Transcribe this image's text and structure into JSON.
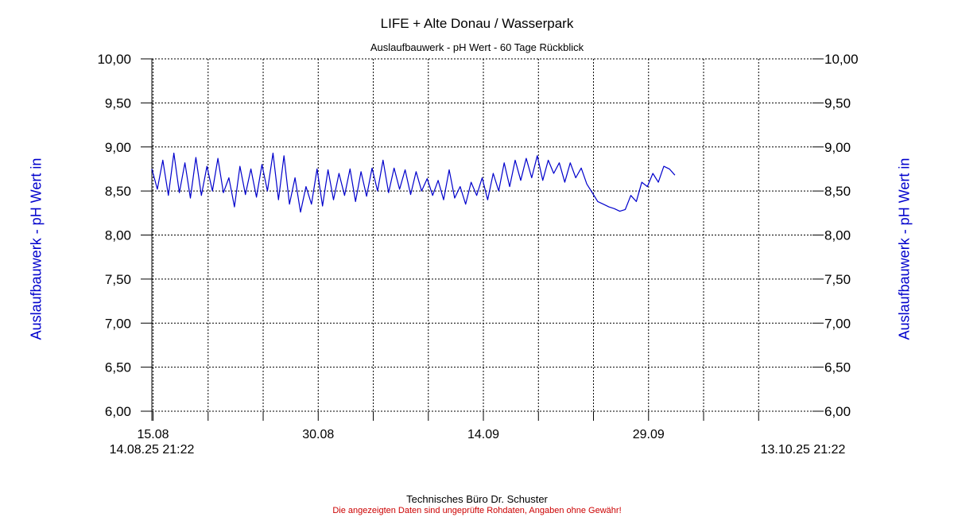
{
  "chart_data": {
    "type": "line",
    "title": "LIFE + Alte Donau / Wasserpark",
    "subtitle": "Auslaufbauwerk - pH Wert - 60 Tage Rückblick",
    "ylabel": "Auslaufbauwerk - pH Wert in",
    "ylim": [
      6.0,
      10.0
    ],
    "y_ticks": [
      "6,00",
      "6,50",
      "7,00",
      "7,50",
      "8,00",
      "8,50",
      "9,00",
      "9,50",
      "10,00"
    ],
    "x_range_days": [
      0,
      60
    ],
    "x_tick_labels": [
      {
        "day": 0.11,
        "label": "15.08"
      },
      {
        "day": 15.11,
        "label": "30.08"
      },
      {
        "day": 30.11,
        "label": "14.09"
      },
      {
        "day": 45.11,
        "label": "29.09"
      }
    ],
    "start_label": "14.08.25 21:22",
    "end_label": "13.10.25 21:22",
    "grid": true,
    "series": [
      {
        "color": "#0000cc",
        "x": [
          0,
          0.5,
          1,
          1.5,
          2,
          2.5,
          3,
          3.5,
          4,
          4.5,
          5,
          5.5,
          6,
          6.5,
          7,
          7.5,
          8,
          8.5,
          9,
          9.5,
          10,
          10.5,
          11,
          11.5,
          12,
          12.5,
          13,
          13.5,
          14,
          14.5,
          15,
          15.5,
          16,
          16.5,
          17,
          17.5,
          18,
          18.5,
          19,
          19.5,
          20,
          20.5,
          21,
          21.5,
          22,
          22.5,
          23,
          23.5,
          24,
          24.5,
          25,
          25.5,
          26,
          26.5,
          27,
          27.5,
          28,
          28.5,
          29,
          29.5,
          30,
          30.5,
          31,
          31.5,
          32,
          32.5,
          33,
          33.5,
          34,
          34.5,
          35,
          35.5,
          36,
          36.5,
          37,
          37.5,
          38,
          38.5,
          39,
          39.5,
          40,
          40.5,
          41,
          41.5,
          42,
          42.5,
          43,
          43.5,
          44,
          44.5,
          45,
          45.5,
          46,
          46.5,
          47,
          47.5
        ],
        "values": [
          8.75,
          8.52,
          8.85,
          8.45,
          8.93,
          8.48,
          8.82,
          8.42,
          8.88,
          8.45,
          8.78,
          8.5,
          8.87,
          8.48,
          8.65,
          8.32,
          8.78,
          8.46,
          8.75,
          8.43,
          8.8,
          8.5,
          8.93,
          8.4,
          8.9,
          8.35,
          8.65,
          8.26,
          8.55,
          8.35,
          8.75,
          8.33,
          8.74,
          8.4,
          8.7,
          8.45,
          8.75,
          8.38,
          8.72,
          8.44,
          8.76,
          8.5,
          8.85,
          8.48,
          8.76,
          8.52,
          8.74,
          8.46,
          8.72,
          8.5,
          8.64,
          8.45,
          8.62,
          8.4,
          8.74,
          8.42,
          8.55,
          8.35,
          8.6,
          8.45,
          8.65,
          8.4,
          8.7,
          8.5,
          8.82,
          8.55,
          8.85,
          8.62,
          8.87,
          8.65,
          8.9,
          8.62,
          8.85,
          8.7,
          8.82,
          8.6,
          8.82,
          8.65,
          8.76,
          8.58,
          8.48,
          8.38,
          8.35,
          8.32,
          8.3,
          8.27,
          8.29,
          8.45,
          8.38,
          8.6,
          8.55,
          8.7,
          8.6,
          8.78,
          8.75,
          8.68
        ]
      }
    ]
  },
  "footer": {
    "company": "Technisches Büro Dr. Schuster",
    "disclaimer": "Die angezeigten Daten sind ungeprüfte Rohdaten, Angaben ohne Gewähr!"
  },
  "colors": {
    "line": "#0000cc",
    "axis_label": "#0000cc",
    "disclaimer": "#cc0000",
    "grid": "#000000"
  }
}
